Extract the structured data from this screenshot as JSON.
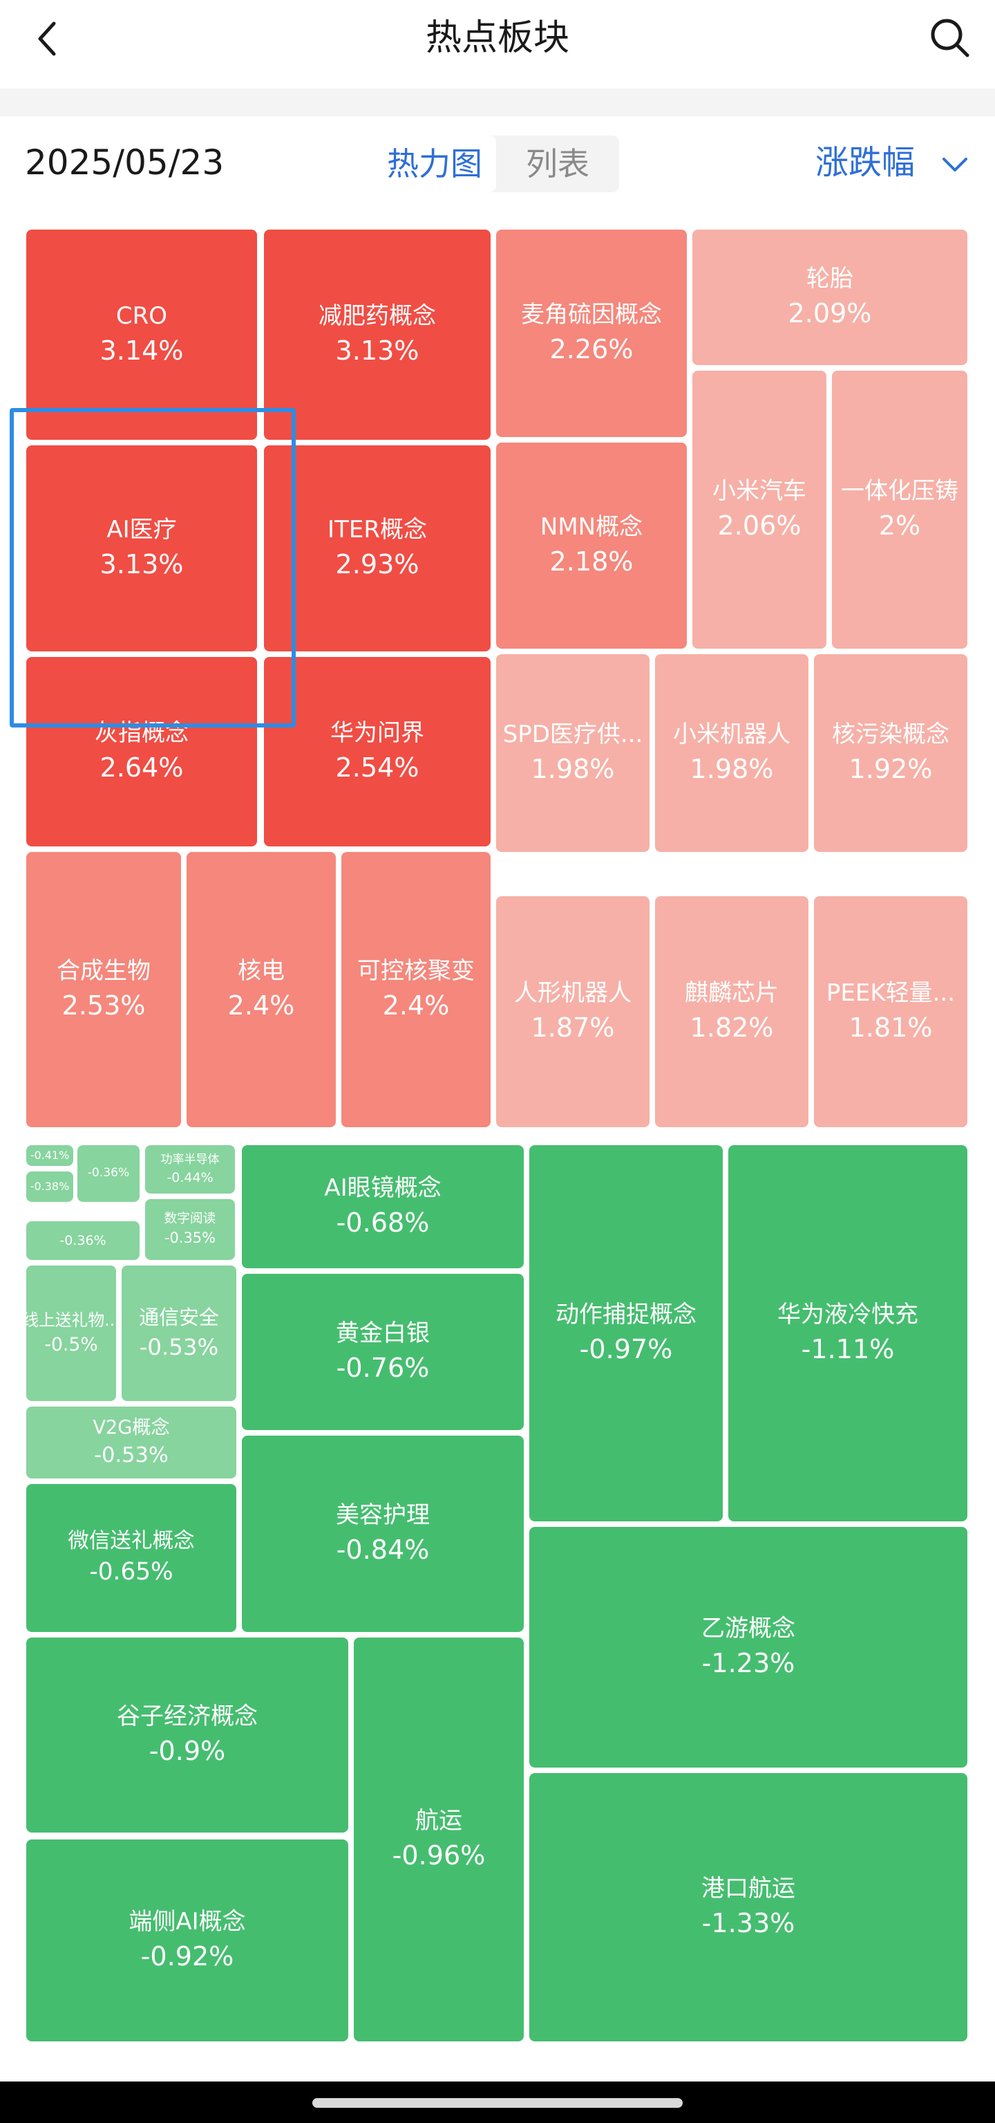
{
  "header": {
    "title": "热点板块",
    "back_icon": "chevron-left-icon",
    "search_icon": "search-icon"
  },
  "toolbar": {
    "date": "2025/05/23",
    "tabs": [
      {
        "label": "热力图",
        "active": true
      },
      {
        "label": "列表",
        "active": false
      }
    ],
    "sort_label": "涨跌幅",
    "sort_icon": "chevron-down-icon"
  },
  "colors": {
    "up_strong": "#f04d44",
    "up_mid": "#f5877c",
    "up_light": "#f6b0a7",
    "down_strong": "#45bd6f",
    "down_light": "#87d49e",
    "accent": "#2f6fd6"
  },
  "sectors": [
    {
      "name": "CRO",
      "change": "3.14%"
    },
    {
      "name": "减肥药概念",
      "change": "3.13%"
    },
    {
      "name": "麦角硫因概念",
      "change": "2.26%"
    },
    {
      "name": "轮胎",
      "change": "2.09%"
    },
    {
      "name": "AI医疗",
      "change": "3.13%"
    },
    {
      "name": "ITER概念",
      "change": "2.93%"
    },
    {
      "name": "NMN概念",
      "change": "2.18%"
    },
    {
      "name": "小米汽车",
      "change": "2.06%"
    },
    {
      "name": "一体化压铸",
      "change": "2%"
    },
    {
      "name": "灰指概念",
      "change": "2.64%"
    },
    {
      "name": "华为问界",
      "change": "2.54%"
    },
    {
      "name": "SPD医疗供...",
      "change": "1.98%"
    },
    {
      "name": "小米机器人",
      "change": "1.98%"
    },
    {
      "name": "核污染概念",
      "change": "1.92%"
    },
    {
      "name": "合成生物",
      "change": "2.53%"
    },
    {
      "name": "核电",
      "change": "2.4%"
    },
    {
      "name": "可控核聚变",
      "change": "2.4%"
    },
    {
      "name": "人形机器人",
      "change": "1.87%"
    },
    {
      "name": "麒麟芯片",
      "change": "1.82%"
    },
    {
      "name": "PEEK轻量...",
      "change": "1.81%"
    },
    {
      "name": "",
      "change": "-0.41%"
    },
    {
      "name": "",
      "change": "-0.38%"
    },
    {
      "name": "",
      "change": "-0.36%"
    },
    {
      "name": "功率半导体",
      "change": "-0.44%"
    },
    {
      "name": "数字阅读",
      "change": "-0.35%"
    },
    {
      "name": "",
      "change": "-0.36%"
    },
    {
      "name": "线上送礼物...",
      "change": "-0.5%"
    },
    {
      "name": "通信安全",
      "change": "-0.53%"
    },
    {
      "name": "V2G概念",
      "change": "-0.53%"
    },
    {
      "name": "微信送礼概念",
      "change": "-0.65%"
    },
    {
      "name": "AI眼镜概念",
      "change": "-0.68%"
    },
    {
      "name": "黄金白银",
      "change": "-0.76%"
    },
    {
      "name": "美容护理",
      "change": "-0.84%"
    },
    {
      "name": "动作捕捉概念",
      "change": "-0.97%"
    },
    {
      "name": "华为液冷快充",
      "change": "-1.11%"
    },
    {
      "name": "乙游概念",
      "change": "-1.23%"
    },
    {
      "name": "谷子经济概念",
      "change": "-0.9%"
    },
    {
      "name": "航运",
      "change": "-0.96%"
    },
    {
      "name": "端侧AI概念",
      "change": "-0.92%"
    },
    {
      "name": "港口航运",
      "change": "-1.33%"
    }
  ]
}
